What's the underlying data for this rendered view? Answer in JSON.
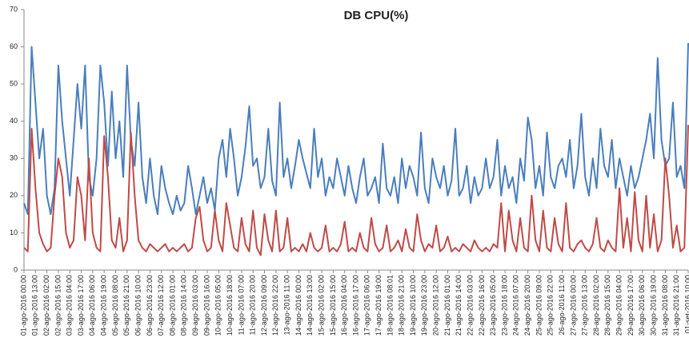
{
  "chart_data": {
    "type": "line",
    "title": "DB CPU(%)",
    "categories": [
      "01-ago-2016 00:00",
      null,
      null,
      "01-ago-2016 13:00",
      null,
      null,
      "02-ago-2016 02:00",
      null,
      null,
      "02-ago-2016 15:00",
      null,
      null,
      "03-ago-2016 04:00",
      null,
      null,
      "03-ago-2016 17:00",
      null,
      null,
      "04-ago-2016 06:00",
      null,
      null,
      "04-ago-2016 19:00",
      null,
      null,
      "05-ago-2016 08:00",
      null,
      null,
      "05-ago-2016 21:00",
      null,
      null,
      "06-ago-2016 10:00",
      null,
      null,
      "06-ago-2016 23:00",
      null,
      null,
      "07-ago-2016 12:00",
      null,
      null,
      "08-ago-2016 01:00",
      null,
      null,
      "08-ago-2016 14:00",
      null,
      null,
      "09-ago-2016 03:00",
      null,
      null,
      "09-ago-2016 16:00",
      null,
      null,
      "10-ago-2016 05:00",
      null,
      null,
      "10-ago-2016 18:00",
      null,
      null,
      "11-ago-2016 07:00",
      null,
      null,
      "11-ago-2016 20:00",
      null,
      null,
      "12-ago-2016 09:00",
      null,
      null,
      "12-ago-2016 22:00",
      null,
      null,
      "13-ago-2016 11:00",
      null,
      null,
      "14-ago-2016 00:00",
      null,
      null,
      "14-ago-2016 13:00",
      null,
      null,
      "15-ago-2016 02:00",
      null,
      null,
      "15-ago-2016 15:00",
      null,
      null,
      "16-ago-2016 04:00",
      null,
      null,
      "16-ago-2016 17:00",
      null,
      null,
      "17-ago-2016 06:00",
      null,
      null,
      "17-ago-2016 19:00",
      null,
      null,
      "18-ago-2016 08:01",
      null,
      null,
      "18-ago-2016 21:00",
      null,
      null,
      "19-ago-2016 10:00",
      null,
      null,
      "19-ago-2016 23:00",
      null,
      null,
      "20-ago-2016 12:00",
      null,
      null,
      "21-ago-2016 01:00",
      null,
      null,
      "21-ago-2016 14:00",
      null,
      null,
      "22-ago-2016 03:00",
      null,
      null,
      "22-ago-2016 16:00",
      null,
      null,
      "23-ago-2016 05:00",
      null,
      null,
      "23-ago-2016 18:00",
      null,
      null,
      "24-ago-2016 07:00",
      null,
      null,
      "24-ago-2016 20:00",
      null,
      null,
      "25-ago-2016 09:00",
      null,
      null,
      "25-ago-2016 22:00",
      null,
      null,
      "26-ago-2016 11:00",
      null,
      null,
      "27-ago-2016 00:00",
      null,
      null,
      "27-ago-2016 13:00",
      null,
      null,
      "28-ago-2016 02:00",
      null,
      null,
      "28-ago-2016 15:00",
      null,
      null,
      "29-ago-2016 04:00",
      null,
      null,
      "29-ago-2016 17:00",
      null,
      null,
      "30-ago-2016 06:00",
      null,
      null,
      "30-ago-2016 19:00",
      null,
      null,
      "31-ago-2016 08:00",
      null,
      null,
      "31-ago-2016 21:00",
      null,
      null,
      "01-set-2016 10:00"
    ],
    "series": [
      {
        "color": "#4a7ebb",
        "values": [
          18,
          15,
          60,
          45,
          30,
          38,
          20,
          15,
          22,
          55,
          40,
          30,
          20,
          35,
          50,
          38,
          55,
          25,
          20,
          30,
          55,
          45,
          28,
          48,
          30,
          40,
          25,
          55,
          35,
          28,
          45,
          25,
          18,
          30,
          20,
          15,
          28,
          22,
          18,
          15,
          20,
          16,
          18,
          28,
          22,
          15,
          20,
          25,
          18,
          22,
          16,
          30,
          35,
          25,
          38,
          30,
          20,
          25,
          33,
          44,
          28,
          30,
          22,
          25,
          38,
          24,
          20,
          45,
          25,
          30,
          22,
          28,
          35,
          30,
          26,
          22,
          38,
          25,
          30,
          20,
          25,
          22,
          30,
          25,
          20,
          28,
          22,
          18,
          25,
          30,
          20,
          22,
          25,
          18,
          34,
          22,
          20,
          25,
          18,
          30,
          22,
          28,
          25,
          20,
          37,
          22,
          18,
          30,
          25,
          22,
          28,
          20,
          24,
          38,
          20,
          22,
          28,
          18,
          25,
          20,
          22,
          30,
          22,
          25,
          35,
          20,
          28,
          22,
          25,
          18,
          30,
          24,
          41,
          35,
          22,
          28,
          20,
          37,
          25,
          22,
          28,
          30,
          25,
          35,
          22,
          28,
          42,
          25,
          20,
          30,
          22,
          38,
          28,
          25,
          35,
          22,
          30,
          25,
          20,
          28,
          22,
          25,
          30,
          35,
          42,
          30,
          57,
          35,
          28,
          30,
          45,
          25,
          28,
          22,
          61
        ]
      },
      {
        "color": "#be4b48",
        "values": [
          6,
          5,
          38,
          22,
          10,
          7,
          5,
          6,
          20,
          30,
          25,
          10,
          6,
          8,
          25,
          20,
          8,
          30,
          10,
          6,
          5,
          36,
          25,
          8,
          6,
          14,
          5,
          8,
          37,
          20,
          8,
          6,
          5,
          7,
          6,
          5,
          6,
          7,
          5,
          6,
          5,
          6,
          7,
          5,
          6,
          14,
          17,
          8,
          5,
          6,
          16,
          8,
          5,
          18,
          12,
          6,
          5,
          14,
          7,
          5,
          16,
          6,
          4,
          15,
          8,
          5,
          16,
          5,
          6,
          14,
          5,
          6,
          5,
          7,
          5,
          10,
          6,
          5,
          6,
          12,
          5,
          6,
          5,
          7,
          13,
          5,
          6,
          5,
          10,
          6,
          5,
          14,
          7,
          5,
          6,
          12,
          5,
          6,
          8,
          5,
          11,
          6,
          5,
          15,
          8,
          5,
          7,
          6,
          12,
          5,
          6,
          9,
          5,
          6,
          5,
          7,
          6,
          5,
          8,
          6,
          5,
          6,
          5,
          7,
          6,
          18,
          5,
          16,
          8,
          5,
          14,
          6,
          5,
          20,
          8,
          5,
          16,
          6,
          5,
          14,
          7,
          5,
          18,
          6,
          5,
          7,
          8,
          6,
          5,
          7,
          14,
          6,
          5,
          8,
          6,
          5,
          22,
          6,
          14,
          5,
          21,
          8,
          5,
          20,
          6,
          15,
          5,
          8,
          30,
          20,
          6,
          12,
          5,
          6,
          39
        ]
      }
    ],
    "ylim": [
      0,
      70
    ],
    "yticks": [
      0,
      10,
      20,
      30,
      40,
      50,
      60,
      70
    ],
    "grid": false
  }
}
